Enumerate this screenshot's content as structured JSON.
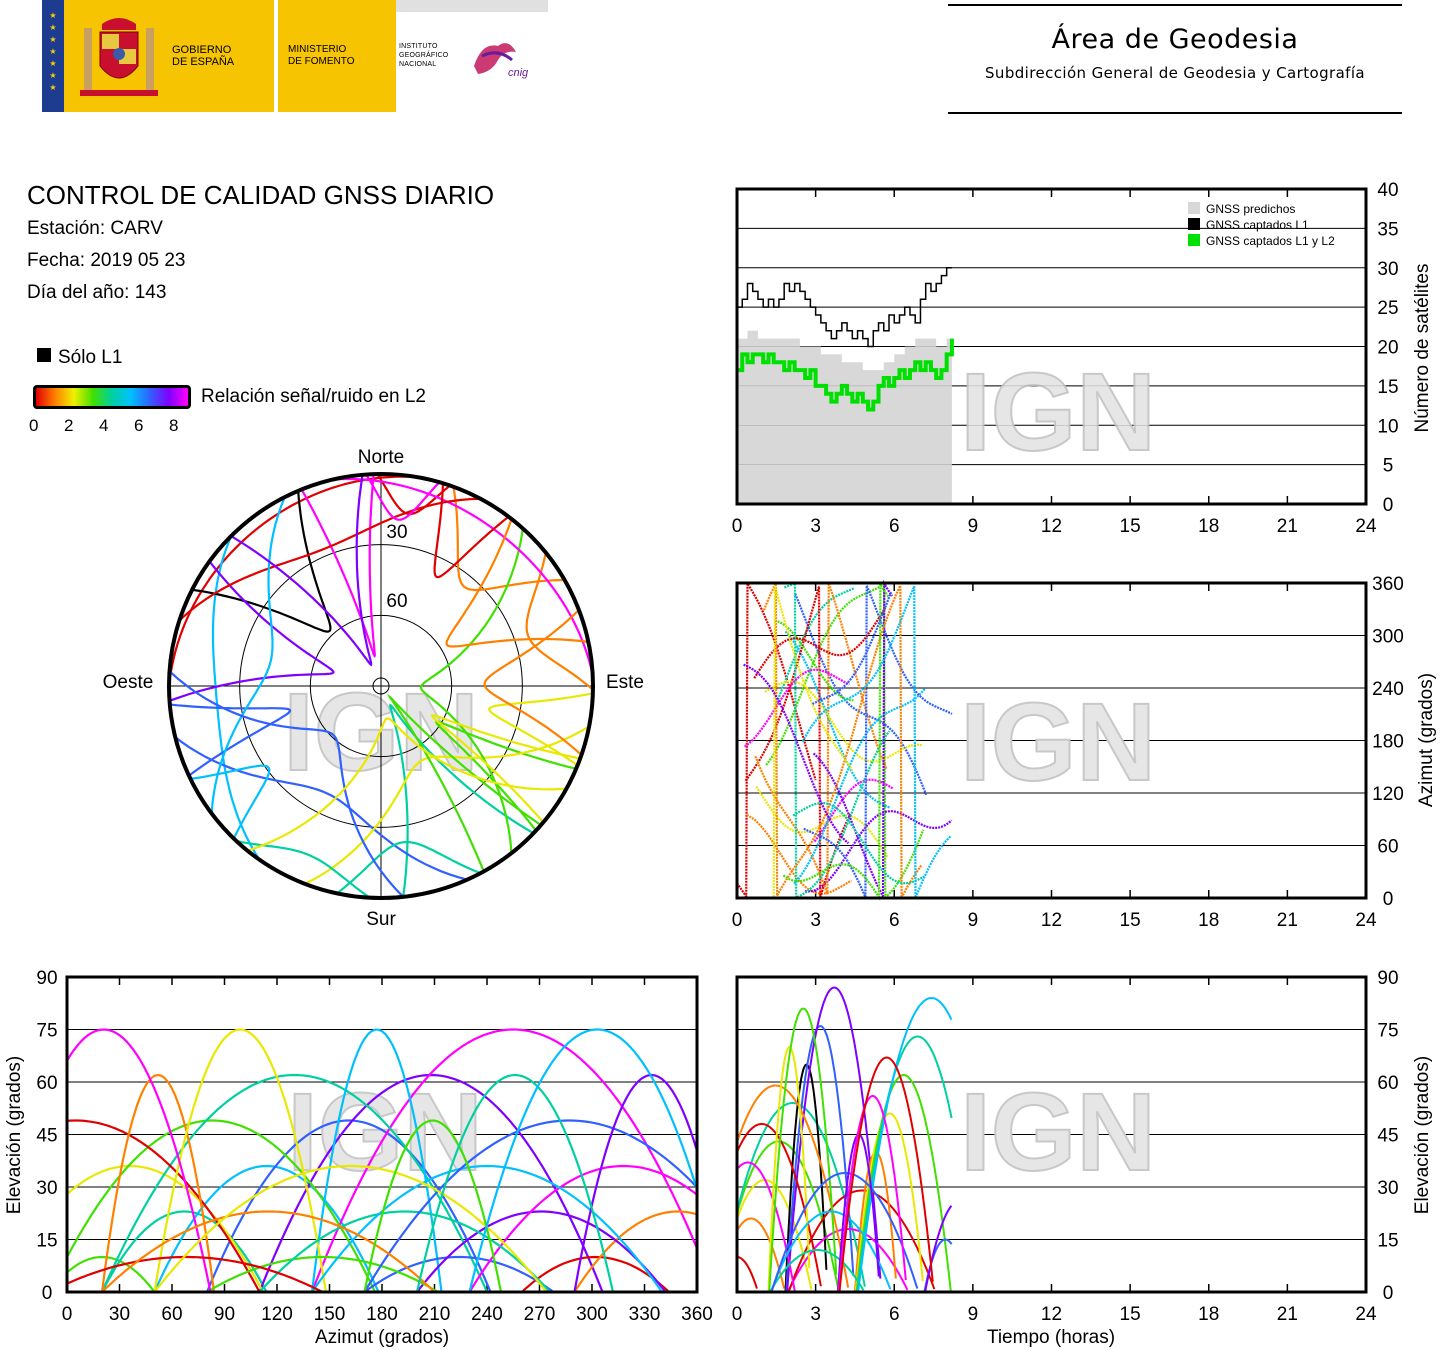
{
  "header": {
    "gobierno": [
      "GOBIERNO",
      "DE ESPAÑA"
    ],
    "ministerio": [
      "MINISTERIO",
      "DE FOMENTO"
    ],
    "ign": [
      "INSTITUTO",
      "GEOGRÁFICO",
      "NACIONAL"
    ],
    "cnig": "cnig",
    "area_title": "Área de Geodesia",
    "area_subtitle": "Subdirección General de Geodesia y Cartografía"
  },
  "info": {
    "title": "CONTROL DE CALIDAD GNSS DIARIO",
    "station": "Estación: CARV",
    "date": "Fecha: 2019 05 23",
    "doy": "Día del año: 143"
  },
  "legend": {
    "l1_only": "Sólo L1",
    "snr_label": "Relación señal/ruido en L2",
    "snr_ticks": [
      "0",
      "2",
      "4",
      "6",
      "8"
    ]
  },
  "watermark": "IGN",
  "chart_data": [
    {
      "type": "line",
      "id": "satellite-count",
      "ylabel": "Número de satélites",
      "x_ticks": [
        "0",
        "3",
        "6",
        "9",
        "12",
        "15",
        "18",
        "21",
        "24"
      ],
      "y_ticks": [
        "0",
        "5",
        "10",
        "15",
        "20",
        "25",
        "30",
        "35",
        "40"
      ],
      "xlim": [
        0,
        24
      ],
      "ylim": [
        0,
        40
      ],
      "legend": [
        "GNSS predichos",
        "GNSS captados L1",
        "GNSS captados L1 y L2"
      ],
      "series": [
        {
          "name": "GNSS predichos",
          "color": "#d8d8d8",
          "x": [
            0,
            0.4,
            0.8,
            1.2,
            1.6,
            2.0,
            2.4,
            2.8,
            3.2,
            3.6,
            4.0,
            4.4,
            4.8,
            5.2,
            5.6,
            6.0,
            6.4,
            6.8,
            7.2,
            7.6,
            8.0,
            8.2
          ],
          "y": [
            21,
            22,
            21,
            21,
            21,
            21,
            20,
            20,
            19,
            19,
            18,
            18,
            17,
            17,
            18,
            19,
            20,
            21,
            21,
            20,
            21,
            22
          ]
        },
        {
          "name": "GNSS captados L1",
          "color": "#000000",
          "x": [
            0,
            0.2,
            0.4,
            0.6,
            0.8,
            1.0,
            1.2,
            1.4,
            1.6,
            1.8,
            2.0,
            2.2,
            2.4,
            2.6,
            2.8,
            3.0,
            3.2,
            3.4,
            3.6,
            3.8,
            4.0,
            4.2,
            4.4,
            4.6,
            4.8,
            5.0,
            5.2,
            5.4,
            5.6,
            5.8,
            6.0,
            6.2,
            6.4,
            6.6,
            6.8,
            7.0,
            7.2,
            7.4,
            7.6,
            7.8,
            8.0,
            8.2
          ],
          "y": [
            25,
            26,
            28,
            27,
            26,
            25,
            26,
            25,
            26,
            28,
            27,
            28,
            27,
            26,
            25,
            24,
            23,
            22,
            21,
            22,
            23,
            22,
            21,
            22,
            21,
            20,
            22,
            23,
            22,
            24,
            23,
            24,
            25,
            24,
            23,
            26,
            28,
            27,
            28,
            29,
            30,
            30
          ]
        },
        {
          "name": "GNSS captados L1 y L2",
          "color": "#00e000",
          "x": [
            0,
            0.2,
            0.4,
            0.6,
            0.8,
            1.0,
            1.2,
            1.4,
            1.6,
            1.8,
            2.0,
            2.2,
            2.4,
            2.6,
            2.8,
            3.0,
            3.2,
            3.4,
            3.6,
            3.8,
            4.0,
            4.2,
            4.4,
            4.6,
            4.8,
            5.0,
            5.2,
            5.4,
            5.6,
            5.8,
            6.0,
            6.2,
            6.4,
            6.6,
            6.8,
            7.0,
            7.2,
            7.4,
            7.6,
            7.8,
            8.0,
            8.2
          ],
          "y": [
            17,
            19,
            18,
            19,
            19,
            18,
            19,
            18,
            18,
            17,
            18,
            17,
            17,
            16,
            17,
            15,
            15,
            14,
            13,
            14,
            15,
            14,
            13,
            14,
            13,
            12,
            13,
            15,
            16,
            15,
            16,
            17,
            16,
            17,
            18,
            17,
            18,
            17,
            16,
            17,
            19,
            21
          ]
        }
      ]
    },
    {
      "type": "scatter",
      "id": "azimuth-time",
      "ylabel": "Azimut (grados)",
      "x_ticks": [
        "0",
        "3",
        "6",
        "9",
        "12",
        "15",
        "18",
        "21",
        "24"
      ],
      "y_ticks": [
        "0",
        "60",
        "120",
        "180",
        "240",
        "300",
        "360"
      ],
      "xlim": [
        0,
        24
      ],
      "ylim": [
        0,
        360
      ]
    },
    {
      "type": "scatter",
      "id": "elevation-azimuth",
      "xlabel": "Azimut (grados)",
      "ylabel": "Elevación (grados)",
      "x_ticks": [
        "0",
        "30",
        "60",
        "90",
        "120",
        "150",
        "180",
        "210",
        "240",
        "270",
        "300",
        "330",
        "360"
      ],
      "y_ticks": [
        "0",
        "15",
        "30",
        "45",
        "60",
        "75",
        "90"
      ],
      "xlim": [
        0,
        360
      ],
      "ylim": [
        0,
        90
      ]
    },
    {
      "type": "scatter",
      "id": "elevation-time",
      "xlabel": "Tiempo (horas)",
      "ylabel": "Elevación (grados)",
      "x_ticks": [
        "0",
        "3",
        "6",
        "9",
        "12",
        "15",
        "18",
        "21",
        "24"
      ],
      "y_ticks": [
        "0",
        "15",
        "30",
        "45",
        "60",
        "75",
        "90"
      ],
      "xlim": [
        0,
        24
      ],
      "ylim": [
        0,
        90
      ]
    },
    {
      "type": "scatter",
      "id": "skyplot",
      "directions": {
        "north": "Norte",
        "south": "Sur",
        "west": "Oeste",
        "east": "Este"
      },
      "rings": [
        "30",
        "60"
      ]
    }
  ]
}
